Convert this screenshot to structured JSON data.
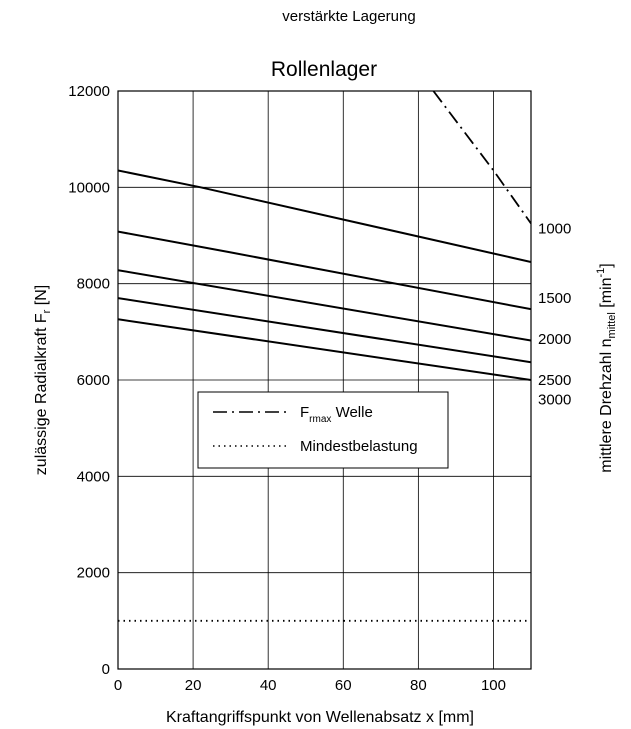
{
  "header": {
    "subtitle": "verstärkte Lagerung"
  },
  "chart_data": {
    "type": "line",
    "title": "Rollenlager",
    "xlabel": {
      "main": "Kraftangriffspunkt von Wellenabsatz x [mm]"
    },
    "ylabel": {
      "main": "zulässige Radialkraft F",
      "sub": "r",
      "tail": " [N]"
    },
    "y2label": {
      "main": "mittlere Drehzahl n",
      "sub": "mittel",
      "mid": " [min",
      "sup": "-1",
      "tail": "]"
    },
    "xlim": [
      0,
      110
    ],
    "ylim": [
      0,
      12000
    ],
    "xticks": [
      0,
      20,
      40,
      60,
      80,
      100
    ],
    "yticks": [
      0,
      2000,
      4000,
      6000,
      8000,
      10000,
      12000
    ],
    "grid": true,
    "series": [
      {
        "name": "1000",
        "style": "solid",
        "x": [
          0,
          22,
          110
        ],
        "y": [
          10350,
          10000,
          8450
        ]
      },
      {
        "name": "1500",
        "style": "solid",
        "x": [
          0,
          30,
          110
        ],
        "y": [
          9080,
          8650,
          7470
        ]
      },
      {
        "name": "2000",
        "style": "solid",
        "x": [
          0,
          110
        ],
        "y": [
          8280,
          6820
        ]
      },
      {
        "name": "2500",
        "style": "solid",
        "x": [
          0,
          110
        ],
        "y": [
          7700,
          6370
        ]
      },
      {
        "name": "3000",
        "style": "solid",
        "x": [
          0,
          110
        ],
        "y": [
          7260,
          6000
        ]
      },
      {
        "name": "F_rmax Welle",
        "style": "dashdot",
        "x": [
          84,
          100,
          110
        ],
        "y": [
          12000,
          10350,
          9250
        ]
      },
      {
        "name": "Mindestbelastung",
        "style": "dotted",
        "x": [
          0,
          110
        ],
        "y": [
          1000,
          1000
        ]
      }
    ],
    "right_labels": [
      {
        "text": "1000",
        "y": 9150
      },
      {
        "text": "1500",
        "y": 7700
      },
      {
        "text": "2000",
        "y": 6850
      },
      {
        "text": "2500",
        "y": 6000
      },
      {
        "text": "3000",
        "y": 5600
      }
    ],
    "legend": {
      "placement": "center-left",
      "entries": [
        {
          "style": "dashdot",
          "label": {
            "main": "F",
            "sub": "rmax",
            "tail": " Welle"
          }
        },
        {
          "style": "dotted",
          "label": {
            "main": "Mindestbelastung",
            "sub": "",
            "tail": ""
          }
        }
      ]
    }
  }
}
